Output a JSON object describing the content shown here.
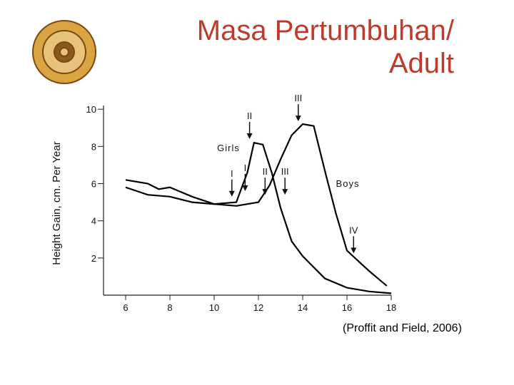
{
  "chart_data": {
    "type": "line",
    "title": "Masa Pertumbuhan/ Adult",
    "source": "(Proffit and Field, 2006)",
    "ylabel": "Height Gain, cm. Per Year",
    "xlim": [
      5,
      18
    ],
    "ylim": [
      0,
      10.2
    ],
    "xticks": [
      6,
      8,
      10,
      12,
      14,
      16,
      18
    ],
    "yticks": [
      2,
      4,
      6,
      8,
      10
    ],
    "series": [
      {
        "name": "Girls",
        "color": "#000000",
        "x": [
          6,
          7,
          8,
          9,
          10,
          11,
          11.5,
          11.8,
          12.2,
          12.6,
          13,
          13.5,
          14,
          15,
          16,
          17,
          18
        ],
        "values": [
          5.8,
          5.4,
          5.3,
          5.0,
          4.9,
          5.0,
          6.6,
          8.2,
          8.1,
          6.6,
          4.7,
          2.9,
          2.1,
          0.9,
          0.4,
          0.2,
          0.1
        ]
      },
      {
        "name": "Boys",
        "color": "#000000",
        "x": [
          6,
          7,
          7.5,
          8,
          9,
          10,
          11,
          12,
          12.5,
          13,
          13.5,
          14,
          14.5,
          15,
          15.5,
          16,
          17,
          17.8
        ],
        "values": [
          6.2,
          6.0,
          5.7,
          5.8,
          5.3,
          4.9,
          4.8,
          5.0,
          5.9,
          7.3,
          8.6,
          9.2,
          9.1,
          6.7,
          4.4,
          2.4,
          1.3,
          0.5
        ]
      }
    ],
    "annotations": [
      {
        "text": "I",
        "x": 10.8,
        "y": 5.3
      },
      {
        "text": "I",
        "x": 11.4,
        "y": 5.6
      },
      {
        "text": "II",
        "x": 11.6,
        "y": 8.4
      },
      {
        "text": "II",
        "x": 12.3,
        "y": 5.4
      },
      {
        "text": "III",
        "x": 13.2,
        "y": 5.4
      },
      {
        "text": "III",
        "x": 13.8,
        "y": 9.35
      },
      {
        "text": "IV",
        "x": 16.3,
        "y": 2.25
      }
    ]
  }
}
